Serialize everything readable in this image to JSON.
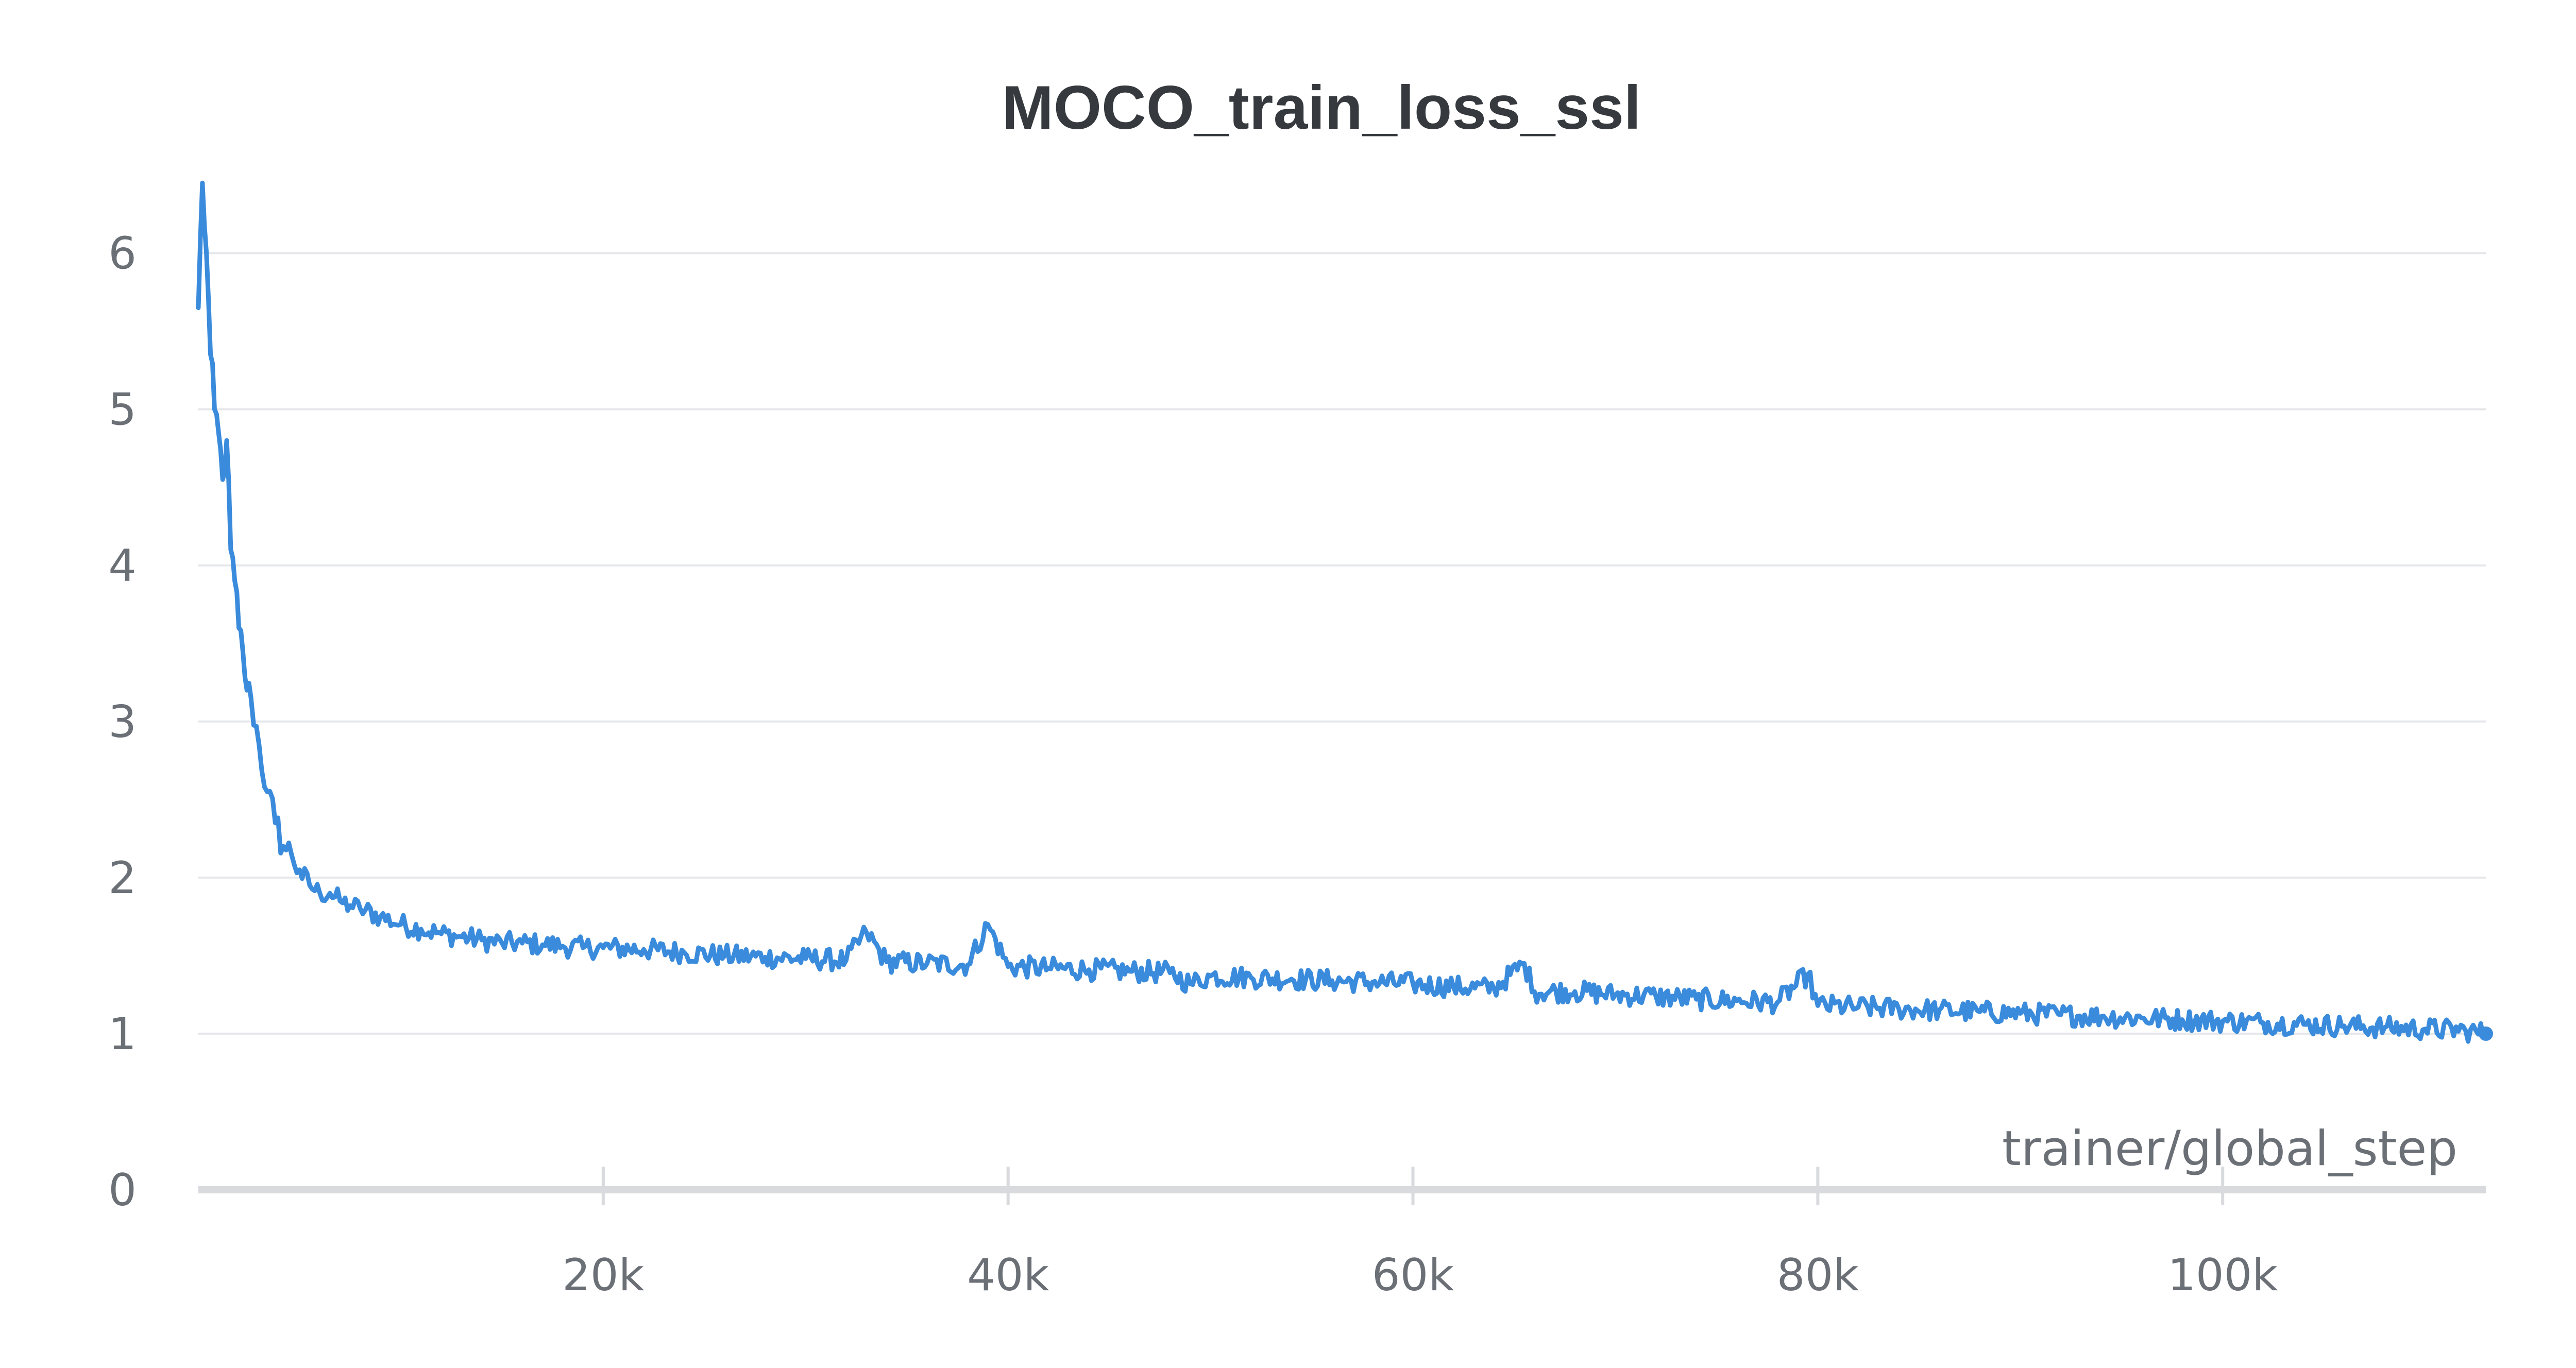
{
  "chart_data": {
    "type": "line",
    "title": "MOCO_train_loss_ssl",
    "xlabel": "trainer/global_step",
    "ylabel": "",
    "xlim": [
      0,
      113000
    ],
    "ylim": [
      0,
      6.5
    ],
    "x_ticks": [
      20000,
      40000,
      60000,
      80000,
      100000
    ],
    "x_tick_labels": [
      "20k",
      "40k",
      "60k",
      "80k",
      "100k"
    ],
    "y_ticks": [
      0,
      1,
      2,
      3,
      4,
      5,
      6
    ],
    "y_tick_labels": [
      "0",
      "1",
      "2",
      "3",
      "4",
      "5",
      "6"
    ],
    "grid": true,
    "legend": "none",
    "colors": {
      "series": "#3a8bdc"
    },
    "series": [
      {
        "x": [
          0,
          200,
          400,
          600,
          800,
          1000,
          1200,
          1400,
          1600,
          1800,
          2000,
          2200,
          2400,
          2600,
          3000,
          3400,
          3800,
          4200,
          4600,
          5000,
          5500,
          6000,
          6500,
          7000,
          7500,
          8000,
          9000,
          10000,
          11000,
          12000,
          13000,
          14000,
          15000,
          16000,
          17000,
          18000,
          19000,
          20000,
          22000,
          24000,
          26000,
          28000,
          30000,
          32000,
          33000,
          34000,
          36000,
          38000,
          39000,
          40000,
          42000,
          44000,
          46000,
          48000,
          49000,
          50000,
          52000,
          54000,
          56000,
          58000,
          60000,
          62000,
          64000,
          65500,
          66000,
          68000,
          70000,
          72000,
          74000,
          76000,
          78000,
          79500,
          80000,
          82000,
          84000,
          86000,
          88000,
          90000,
          92000,
          94000,
          96000,
          98000,
          100000,
          102000,
          104000,
          106000,
          108000,
          110000,
          112000,
          113000
        ],
        "y": [
          5.65,
          6.45,
          6.0,
          5.35,
          5.0,
          4.85,
          4.55,
          4.8,
          4.1,
          3.9,
          3.6,
          3.45,
          3.2,
          3.15,
          2.85,
          2.55,
          2.35,
          2.2,
          2.15,
          2.05,
          1.95,
          1.9,
          1.9,
          1.85,
          1.82,
          1.8,
          1.75,
          1.7,
          1.67,
          1.64,
          1.62,
          1.6,
          1.58,
          1.58,
          1.57,
          1.56,
          1.55,
          1.55,
          1.54,
          1.52,
          1.5,
          1.49,
          1.48,
          1.47,
          1.65,
          1.46,
          1.45,
          1.44,
          1.7,
          1.43,
          1.42,
          1.41,
          1.4,
          1.39,
          1.32,
          1.37,
          1.36,
          1.35,
          1.34,
          1.33,
          1.32,
          1.3,
          1.29,
          1.45,
          1.27,
          1.27,
          1.25,
          1.24,
          1.22,
          1.21,
          1.2,
          1.38,
          1.18,
          1.17,
          1.16,
          1.15,
          1.14,
          1.13,
          1.12,
          1.11,
          1.1,
          1.09,
          1.08,
          1.07,
          1.06,
          1.05,
          1.04,
          1.03,
          1.02,
          1.0
        ]
      }
    ]
  }
}
